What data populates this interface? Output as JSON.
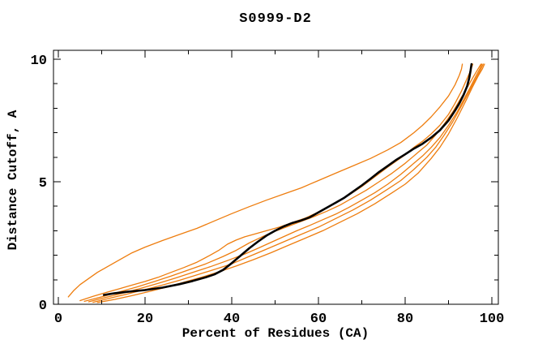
{
  "page": {
    "background": "#ffffff"
  },
  "chart_data": {
    "type": "line",
    "title": "S0999-D2",
    "xlabel": "Percent of Residues (CA)",
    "ylabel": "Distance Cutoff, A",
    "xlim": [
      0,
      100
    ],
    "ylim": [
      0,
      10
    ],
    "grid": false,
    "legend_position": "none",
    "x_major_ticks": [
      0,
      20,
      40,
      60,
      80,
      100
    ],
    "x_major_tick_labels": [
      "0",
      "20",
      "40",
      "60",
      "80",
      "100"
    ],
    "x_minor_ticks": [
      10,
      30,
      50,
      70,
      90
    ],
    "y_major_ticks": [
      0,
      5,
      10
    ],
    "y_major_tick_labels": [
      "0",
      "5",
      "10"
    ],
    "y_minor_ticks": [
      1,
      2,
      3,
      4,
      6,
      7,
      8,
      9
    ],
    "colors": {
      "main_curve": "#000000",
      "model_curves": "#ee7d0e",
      "axis": "#000000"
    },
    "series": [
      {
        "name": "orange-curve-1",
        "role": "model",
        "color": "#ee7d0e",
        "points": [
          [
            2.3,
            0.3
          ],
          [
            3.5,
            0.55
          ],
          [
            5,
            0.8
          ],
          [
            7,
            1.05
          ],
          [
            9,
            1.3
          ],
          [
            11,
            1.5
          ],
          [
            14,
            1.8
          ],
          [
            17,
            2.1
          ],
          [
            20,
            2.33
          ],
          [
            24,
            2.6
          ],
          [
            28,
            2.85
          ],
          [
            32,
            3.1
          ],
          [
            36,
            3.4
          ],
          [
            40,
            3.7
          ],
          [
            44,
            3.98
          ],
          [
            48,
            4.25
          ],
          [
            52,
            4.5
          ],
          [
            56,
            4.75
          ],
          [
            60,
            5.05
          ],
          [
            64,
            5.35
          ],
          [
            68,
            5.65
          ],
          [
            72,
            5.95
          ],
          [
            76,
            6.3
          ],
          [
            79,
            6.6
          ],
          [
            82,
            7.0
          ],
          [
            84,
            7.3
          ],
          [
            86,
            7.65
          ],
          [
            88,
            8.05
          ],
          [
            90,
            8.5
          ],
          [
            91.5,
            8.95
          ],
          [
            92.5,
            9.35
          ],
          [
            93,
            9.6
          ],
          [
            93.2,
            9.8
          ]
        ]
      },
      {
        "name": "orange-curve-2",
        "role": "model",
        "color": "#ee7d0e",
        "points": [
          [
            5,
            0.15
          ],
          [
            8,
            0.32
          ],
          [
            11,
            0.48
          ],
          [
            14,
            0.63
          ],
          [
            17,
            0.78
          ],
          [
            20,
            0.93
          ],
          [
            23,
            1.1
          ],
          [
            26,
            1.3
          ],
          [
            29,
            1.5
          ],
          [
            32,
            1.72
          ],
          [
            35,
            2.0
          ],
          [
            37,
            2.2
          ],
          [
            39,
            2.45
          ],
          [
            41,
            2.62
          ],
          [
            43,
            2.75
          ],
          [
            45,
            2.85
          ],
          [
            47,
            2.95
          ],
          [
            49,
            3.05
          ],
          [
            51,
            3.15
          ],
          [
            53,
            3.27
          ],
          [
            55,
            3.4
          ],
          [
            57,
            3.52
          ],
          [
            59,
            3.68
          ],
          [
            61,
            3.85
          ],
          [
            64,
            4.15
          ],
          [
            67,
            4.45
          ],
          [
            70,
            4.8
          ],
          [
            73,
            5.2
          ],
          [
            76,
            5.6
          ],
          [
            78,
            5.85
          ],
          [
            80,
            6.1
          ],
          [
            82,
            6.4
          ],
          [
            84,
            6.65
          ],
          [
            86,
            6.95
          ],
          [
            88,
            7.3
          ],
          [
            90,
            7.75
          ],
          [
            91.5,
            8.2
          ],
          [
            93,
            8.7
          ],
          [
            94,
            9.1
          ],
          [
            95,
            9.5
          ],
          [
            95.6,
            9.8
          ]
        ]
      },
      {
        "name": "orange-curve-3",
        "role": "model",
        "color": "#ee7d0e",
        "points": [
          [
            6,
            0.12
          ],
          [
            10,
            0.3
          ],
          [
            14,
            0.5
          ],
          [
            18,
            0.7
          ],
          [
            22,
            0.92
          ],
          [
            26,
            1.15
          ],
          [
            30,
            1.4
          ],
          [
            34,
            1.65
          ],
          [
            38,
            1.95
          ],
          [
            41,
            2.2
          ],
          [
            44,
            2.5
          ],
          [
            47,
            2.75
          ],
          [
            50,
            2.98
          ],
          [
            53,
            3.18
          ],
          [
            56,
            3.38
          ],
          [
            59,
            3.58
          ],
          [
            62,
            3.8
          ],
          [
            65,
            4.05
          ],
          [
            68,
            4.35
          ],
          [
            71,
            4.65
          ],
          [
            74,
            5.0
          ],
          [
            77,
            5.35
          ],
          [
            80,
            5.75
          ],
          [
            83,
            6.2
          ],
          [
            85,
            6.5
          ],
          [
            87,
            6.9
          ],
          [
            89,
            7.35
          ],
          [
            91,
            7.85
          ],
          [
            93,
            8.45
          ],
          [
            94.5,
            8.9
          ],
          [
            95.8,
            9.3
          ],
          [
            96.8,
            9.6
          ],
          [
            97.5,
            9.8
          ]
        ]
      },
      {
        "name": "orange-curve-4",
        "role": "model",
        "color": "#ee7d0e",
        "points": [
          [
            7,
            0.1
          ],
          [
            11,
            0.28
          ],
          [
            15,
            0.46
          ],
          [
            19,
            0.65
          ],
          [
            23,
            0.85
          ],
          [
            27,
            1.07
          ],
          [
            31,
            1.3
          ],
          [
            35,
            1.53
          ],
          [
            39,
            1.78
          ],
          [
            43,
            2.05
          ],
          [
            46,
            2.28
          ],
          [
            49,
            2.52
          ],
          [
            52,
            2.76
          ],
          [
            55,
            3.0
          ],
          [
            58,
            3.22
          ],
          [
            61,
            3.45
          ],
          [
            64,
            3.68
          ],
          [
            67,
            3.95
          ],
          [
            70,
            4.25
          ],
          [
            73,
            4.55
          ],
          [
            76,
            4.9
          ],
          [
            79,
            5.3
          ],
          [
            82,
            5.75
          ],
          [
            84,
            6.05
          ],
          [
            86,
            6.4
          ],
          [
            88,
            6.8
          ],
          [
            90,
            7.3
          ],
          [
            92,
            7.85
          ],
          [
            93.5,
            8.35
          ],
          [
            95,
            8.85
          ],
          [
            96.3,
            9.3
          ],
          [
            97.2,
            9.6
          ],
          [
            97.7,
            9.8
          ]
        ]
      },
      {
        "name": "orange-curve-5",
        "role": "model",
        "color": "#ee7d0e",
        "points": [
          [
            8,
            0.08
          ],
          [
            12,
            0.25
          ],
          [
            16,
            0.42
          ],
          [
            20,
            0.6
          ],
          [
            24,
            0.78
          ],
          [
            28,
            0.98
          ],
          [
            32,
            1.2
          ],
          [
            36,
            1.42
          ],
          [
            40,
            1.65
          ],
          [
            44,
            1.95
          ],
          [
            48,
            2.25
          ],
          [
            52,
            2.55
          ],
          [
            56,
            2.85
          ],
          [
            60,
            3.15
          ],
          [
            64,
            3.5
          ],
          [
            68,
            3.85
          ],
          [
            72,
            4.25
          ],
          [
            76,
            4.7
          ],
          [
            79,
            5.05
          ],
          [
            82,
            5.5
          ],
          [
            85,
            6.0
          ],
          [
            87,
            6.4
          ],
          [
            89,
            6.9
          ],
          [
            91,
            7.45
          ],
          [
            93,
            8.1
          ],
          [
            94.5,
            8.6
          ],
          [
            96,
            9.1
          ],
          [
            97.2,
            9.5
          ],
          [
            98,
            9.8
          ]
        ]
      },
      {
        "name": "orange-curve-6",
        "role": "model",
        "color": "#ee7d0e",
        "points": [
          [
            9,
            0.07
          ],
          [
            13,
            0.2
          ],
          [
            17,
            0.35
          ],
          [
            21,
            0.52
          ],
          [
            25,
            0.7
          ],
          [
            29,
            0.9
          ],
          [
            33,
            1.1
          ],
          [
            37,
            1.32
          ],
          [
            41,
            1.56
          ],
          [
            45,
            1.82
          ],
          [
            49,
            2.1
          ],
          [
            53,
            2.4
          ],
          [
            57,
            2.7
          ],
          [
            61,
            3.0
          ],
          [
            65,
            3.35
          ],
          [
            69,
            3.7
          ],
          [
            73,
            4.1
          ],
          [
            77,
            4.55
          ],
          [
            80,
            4.9
          ],
          [
            83,
            5.35
          ],
          [
            86,
            5.95
          ],
          [
            88,
            6.4
          ],
          [
            90,
            6.95
          ],
          [
            92,
            7.6
          ],
          [
            94,
            8.3
          ],
          [
            95.5,
            8.85
          ],
          [
            96.8,
            9.3
          ],
          [
            97.8,
            9.6
          ],
          [
            98.3,
            9.8
          ]
        ]
      },
      {
        "name": "black-main-curve",
        "role": "main",
        "color": "#000000",
        "points": [
          [
            10.5,
            0.38
          ],
          [
            13,
            0.45
          ],
          [
            16,
            0.51
          ],
          [
            20,
            0.58
          ],
          [
            24,
            0.68
          ],
          [
            28,
            0.82
          ],
          [
            31,
            0.95
          ],
          [
            34,
            1.1
          ],
          [
            36,
            1.22
          ],
          [
            38,
            1.4
          ],
          [
            40,
            1.68
          ],
          [
            42,
            1.98
          ],
          [
            44,
            2.28
          ],
          [
            46,
            2.55
          ],
          [
            48,
            2.8
          ],
          [
            50,
            3.0
          ],
          [
            52,
            3.18
          ],
          [
            54,
            3.32
          ],
          [
            56,
            3.42
          ],
          [
            58,
            3.55
          ],
          [
            60,
            3.75
          ],
          [
            62,
            3.95
          ],
          [
            64,
            4.15
          ],
          [
            66,
            4.35
          ],
          [
            68,
            4.6
          ],
          [
            70,
            4.85
          ],
          [
            72,
            5.12
          ],
          [
            74,
            5.4
          ],
          [
            76,
            5.65
          ],
          [
            78,
            5.9
          ],
          [
            80,
            6.12
          ],
          [
            82,
            6.35
          ],
          [
            84,
            6.55
          ],
          [
            86,
            6.8
          ],
          [
            88,
            7.1
          ],
          [
            90,
            7.5
          ],
          [
            91.5,
            7.9
          ],
          [
            92.5,
            8.2
          ],
          [
            93.5,
            8.55
          ],
          [
            94.3,
            8.9
          ],
          [
            94.8,
            9.25
          ],
          [
            95.1,
            9.55
          ],
          [
            95.3,
            9.8
          ]
        ]
      }
    ]
  }
}
